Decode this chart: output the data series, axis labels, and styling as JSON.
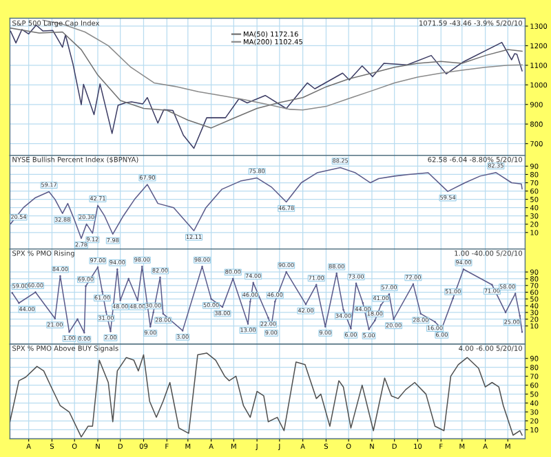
{
  "chart_data": [
    {
      "type": "line",
      "title": "S&P 500 Large Cap Index",
      "annotations": [
        "1071.59 -43.46 -3.9% 5/20/10"
      ],
      "legend": "top",
      "grid": true,
      "tick_labels": "y",
      "xlim": [
        "2008-07-07",
        "2010-05-24"
      ],
      "ylim": [
        640,
        1340
      ],
      "yticks": [
        700,
        800,
        900,
        1000,
        1100,
        1200,
        1300
      ],
      "xticks": [
        {
          "value": "2008-08-01",
          "label": null
        },
        {
          "value": "2008-09-01",
          "label": null
        },
        {
          "value": "2008-10-01",
          "label": null
        },
        {
          "value": "2008-11-01",
          "label": null
        },
        {
          "value": "2008-12-01",
          "label": null
        },
        {
          "value": "2009-01-01",
          "label": null
        },
        {
          "value": "2009-02-01",
          "label": null
        },
        {
          "value": "2009-03-01",
          "label": null
        },
        {
          "value": "2009-04-01",
          "label": null
        },
        {
          "value": "2009-05-01",
          "label": null
        },
        {
          "value": "2009-06-01",
          "label": null
        },
        {
          "value": "2009-07-01",
          "label": null
        },
        {
          "value": "2009-08-01",
          "label": null
        },
        {
          "value": "2009-09-01",
          "label": null
        },
        {
          "value": "2009-10-01",
          "label": null
        },
        {
          "value": "2009-11-01",
          "label": null
        },
        {
          "value": "2009-12-01",
          "label": null
        },
        {
          "value": "2010-01-01",
          "label": null
        },
        {
          "value": "2010-02-01",
          "label": null
        },
        {
          "value": "2010-03-01",
          "label": null
        },
        {
          "value": "2010-04-01",
          "label": null
        },
        {
          "value": "2010-05-01",
          "label": null
        }
      ],
      "series": [
        {
          "color": "#3c3c64",
          "x": [
            "2008-07-08",
            "2008-07-15",
            "2008-07-23",
            "2008-08-01",
            "2008-08-11",
            "2008-08-20",
            "2008-09-02",
            "2008-09-15",
            "2008-09-19",
            "2008-09-29",
            "2008-10-10",
            "2008-10-13",
            "2008-10-27",
            "2008-11-04",
            "2008-11-20",
            "2008-11-28",
            "2008-12-08",
            "2008-12-16",
            "2008-12-31",
            "2009-01-06",
            "2009-01-20",
            "2009-01-28",
            "2009-02-09",
            "2009-02-23",
            "2009-03-09",
            "2009-03-26",
            "2009-04-20",
            "2009-05-08",
            "2009-05-19",
            "2009-06-12",
            "2009-07-10",
            "2009-08-07",
            "2009-08-17",
            "2009-09-23",
            "2009-10-02",
            "2009-10-19",
            "2009-11-02",
            "2009-11-17",
            "2009-12-18",
            "2010-01-19",
            "2010-02-08",
            "2010-03-03",
            "2010-04-23",
            "2010-05-06",
            "2010-05-10",
            "2010-05-13",
            "2010-05-20"
          ],
          "values": [
            1273,
            1214,
            1283,
            1260,
            1305,
            1275,
            1278,
            1192,
            1255,
            1106,
            899,
            1003,
            848,
            1005,
            752,
            896,
            909,
            913,
            903,
            935,
            805,
            874,
            869,
            743,
            676,
            832,
            832,
            929,
            908,
            946,
            879,
            1010,
            980,
            1060,
            1025,
            1097,
            1042,
            1110,
            1102,
            1150,
            1056,
            1118,
            1217,
            1128,
            1159,
            1157,
            1071.59
          ]
        },
        {
          "name": "MA(50) 1172.16",
          "color": "#707070",
          "x": [
            "2008-07-08",
            "2008-08-15",
            "2008-09-15",
            "2008-10-10",
            "2008-11-01",
            "2008-12-01",
            "2009-01-01",
            "2009-02-01",
            "2009-03-01",
            "2009-04-01",
            "2009-05-01",
            "2009-06-01",
            "2009-07-01",
            "2009-08-01",
            "2009-09-01",
            "2009-10-01",
            "2009-11-01",
            "2009-12-01",
            "2010-01-01",
            "2010-02-01",
            "2010-03-01",
            "2010-04-01",
            "2010-05-01",
            "2010-05-20"
          ],
          "values": [
            1290,
            1265,
            1270,
            1180,
            1050,
            920,
            880,
            870,
            820,
            780,
            830,
            880,
            910,
            935,
            990,
            1030,
            1060,
            1090,
            1110,
            1120,
            1110,
            1150,
            1180,
            1172
          ]
        },
        {
          "name": "MA(200) 1102.45",
          "color": "#8a8a8a",
          "x": [
            "2008-08-20",
            "2008-09-15",
            "2008-10-15",
            "2008-11-15",
            "2008-12-15",
            "2009-01-15",
            "2009-02-15",
            "2009-03-15",
            "2009-04-15",
            "2009-05-15",
            "2009-06-15",
            "2009-07-15",
            "2009-08-01",
            "2009-09-01",
            "2009-10-01",
            "2009-11-01",
            "2009-12-01",
            "2010-01-01",
            "2010-02-01",
            "2010-03-01",
            "2010-04-01",
            "2010-05-01",
            "2010-05-20"
          ],
          "values": [
            1330,
            1310,
            1270,
            1200,
            1090,
            1010,
            990,
            965,
            945,
            925,
            900,
            875,
            872,
            890,
            930,
            970,
            1010,
            1040,
            1060,
            1075,
            1090,
            1100,
            1102
          ]
        }
      ]
    },
    {
      "type": "line",
      "title": "NYSE Bullish Percent Index ($BPNYA)",
      "annotations": [
        "62.58 -6.04 -8.80% 5/20/10",
        {
          "text": "20.54",
          "x": "2008-07-08",
          "y": 20.54
        },
        {
          "text": "59.17",
          "x": "2008-08-28",
          "y": 59.17
        },
        {
          "text": "32.88",
          "x": "2008-09-15",
          "y": 32.88
        },
        {
          "text": "2.78",
          "x": "2008-10-10",
          "y": 2.78
        },
        {
          "text": "20.30",
          "x": "2008-10-17",
          "y": 20.3
        },
        {
          "text": "9.12",
          "x": "2008-10-25",
          "y": 9.12
        },
        {
          "text": "42.71",
          "x": "2008-11-01",
          "y": 42.71
        },
        {
          "text": "7.98",
          "x": "2008-11-21",
          "y": 7.98
        },
        {
          "text": "67.90",
          "x": "2009-01-06",
          "y": 67.9
        },
        {
          "text": "12.11",
          "x": "2009-03-09",
          "y": 12.11
        },
        {
          "text": "75.80",
          "x": "2009-06-01",
          "y": 75.8
        },
        {
          "text": "46.78",
          "x": "2009-07-10",
          "y": 46.78
        },
        {
          "text": "88.25",
          "x": "2009-09-20",
          "y": 88.25
        },
        {
          "text": "59.54",
          "x": "2010-02-10",
          "y": 59.54
        },
        {
          "text": "82.35",
          "x": "2010-04-15",
          "y": 82.35
        }
      ],
      "grid": true,
      "tick_labels": "y",
      "xlim": [
        "2008-07-07",
        "2010-05-24"
      ],
      "ylim": [
        -10,
        103
      ],
      "yticks": [
        10,
        20,
        30,
        40,
        50,
        60,
        70,
        80,
        90
      ],
      "xticks": [
        {
          "value": "2008-08-01",
          "label": null
        },
        {
          "value": "2008-09-01",
          "label": null
        },
        {
          "value": "2008-10-01",
          "label": null
        },
        {
          "value": "2008-11-01",
          "label": null
        },
        {
          "value": "2008-12-01",
          "label": null
        },
        {
          "value": "2009-01-01",
          "label": null
        },
        {
          "value": "2009-02-01",
          "label": null
        },
        {
          "value": "2009-03-01",
          "label": null
        },
        {
          "value": "2009-04-01",
          "label": null
        },
        {
          "value": "2009-05-01",
          "label": null
        },
        {
          "value": "2009-06-01",
          "label": null
        },
        {
          "value": "2009-07-01",
          "label": null
        },
        {
          "value": "2009-08-01",
          "label": null
        },
        {
          "value": "2009-09-01",
          "label": null
        },
        {
          "value": "2009-10-01",
          "label": null
        },
        {
          "value": "2009-11-01",
          "label": null
        },
        {
          "value": "2009-12-01",
          "label": null
        },
        {
          "value": "2010-01-01",
          "label": null
        },
        {
          "value": "2010-02-01",
          "label": null
        },
        {
          "value": "2010-03-01",
          "label": null
        },
        {
          "value": "2010-04-01",
          "label": null
        },
        {
          "value": "2010-05-01",
          "label": null
        }
      ],
      "series": [
        {
          "color": "#5a5a8a",
          "x": [
            "2008-07-08",
            "2008-07-25",
            "2008-08-10",
            "2008-08-28",
            "2008-09-05",
            "2008-09-15",
            "2008-09-22",
            "2008-10-01",
            "2008-10-10",
            "2008-10-17",
            "2008-10-25",
            "2008-11-01",
            "2008-11-10",
            "2008-11-21",
            "2008-12-05",
            "2008-12-20",
            "2009-01-06",
            "2009-01-20",
            "2009-02-10",
            "2009-03-09",
            "2009-03-25",
            "2009-04-15",
            "2009-05-10",
            "2009-06-01",
            "2009-06-20",
            "2009-07-10",
            "2009-07-30",
            "2009-08-20",
            "2009-09-20",
            "2009-10-10",
            "2009-10-30",
            "2009-11-10",
            "2009-12-01",
            "2009-12-20",
            "2010-01-15",
            "2010-02-10",
            "2010-03-05",
            "2010-03-25",
            "2010-04-15",
            "2010-05-06",
            "2010-05-19",
            "2010-05-20"
          ],
          "values": [
            20.54,
            40,
            52,
            59.17,
            50,
            32.88,
            45,
            25,
            2.78,
            20.3,
            9.12,
            42.71,
            30,
            7.98,
            30,
            50,
            67.9,
            45,
            40,
            12.11,
            40,
            62,
            72,
            75.8,
            65,
            46.78,
            70,
            82,
            88.25,
            82,
            70,
            75,
            78,
            80,
            82,
            59.54,
            70,
            78,
            82.35,
            70,
            68.62,
            62.58
          ]
        }
      ]
    },
    {
      "type": "line",
      "title": "SPX % PMO Rising",
      "annotations": [
        "1.00 -40.00 5/20/10",
        {
          "text": "59.00",
          "x": "2008-07-10",
          "y": 59
        },
        {
          "text": "44.00",
          "x": "2008-07-19",
          "y": 44
        },
        {
          "text": "60.00",
          "x": "2008-08-10",
          "y": 60
        },
        {
          "text": "21.00",
          "x": "2008-09-05",
          "y": 21
        },
        {
          "text": "84.00",
          "x": "2008-09-12",
          "y": 84
        },
        {
          "text": "1.00",
          "x": "2008-09-24",
          "y": 1
        },
        {
          "text": "0.00",
          "x": "2008-10-14",
          "y": 0
        },
        {
          "text": "69.00",
          "x": "2008-10-16",
          "y": 69
        },
        {
          "text": "97.00",
          "x": "2008-11-01",
          "y": 97
        },
        {
          "text": "61.00",
          "x": "2008-11-07",
          "y": 61
        },
        {
          "text": "31.00",
          "x": "2008-11-12",
          "y": 31
        },
        {
          "text": "2.00",
          "x": "2008-11-18",
          "y": 2
        },
        {
          "text": "94.00",
          "x": "2008-11-27",
          "y": 94
        },
        {
          "text": "48.00",
          "x": "2008-12-01",
          "y": 48
        },
        {
          "text": "48.00",
          "x": "2008-12-24",
          "y": 48
        },
        {
          "text": "98.00",
          "x": "2008-12-30",
          "y": 98
        },
        {
          "text": "9.00",
          "x": "2009-01-10",
          "y": 9
        },
        {
          "text": "30.00",
          "x": "2009-01-14",
          "y": 30
        },
        {
          "text": "82.00",
          "x": "2009-01-23",
          "y": 82
        },
        {
          "text": "28.00",
          "x": "2009-01-27",
          "y": 28
        },
        {
          "text": "3.00",
          "x": "2009-02-22",
          "y": 3
        },
        {
          "text": "98.00",
          "x": "2009-03-20",
          "y": 98
        },
        {
          "text": "50.00",
          "x": "2009-04-01",
          "y": 50
        },
        {
          "text": "38.00",
          "x": "2009-04-16",
          "y": 38
        },
        {
          "text": "80.00",
          "x": "2009-04-30",
          "y": 80
        },
        {
          "text": "13.00",
          "x": "2009-05-20",
          "y": 13
        },
        {
          "text": "46.00",
          "x": "2009-05-23",
          "y": 46
        },
        {
          "text": "74.00",
          "x": "2009-05-27",
          "y": 74
        },
        {
          "text": "22.00",
          "x": "2009-06-16",
          "y": 22
        },
        {
          "text": "9.00",
          "x": "2009-06-20",
          "y": 9
        },
        {
          "text": "46.00",
          "x": "2009-06-25",
          "y": 46
        },
        {
          "text": "90.00",
          "x": "2009-07-10",
          "y": 90
        },
        {
          "text": "42.00",
          "x": "2009-08-05",
          "y": 42
        },
        {
          "text": "71.00",
          "x": "2009-08-19",
          "y": 71
        },
        {
          "text": "9.00",
          "x": "2009-08-31",
          "y": 9
        },
        {
          "text": "88.00",
          "x": "2009-09-15",
          "y": 88
        },
        {
          "text": "34.00",
          "x": "2009-09-24",
          "y": 34
        },
        {
          "text": "6.00",
          "x": "2009-10-04",
          "y": 6
        },
        {
          "text": "73.00",
          "x": "2009-10-11",
          "y": 73
        },
        {
          "text": "44.00",
          "x": "2009-10-20",
          "y": 44
        },
        {
          "text": "5.00",
          "x": "2009-10-28",
          "y": 5
        },
        {
          "text": "18.00",
          "x": "2009-11-05",
          "y": 18
        },
        {
          "text": "41.00",
          "x": "2009-11-13",
          "y": 41
        },
        {
          "text": "57.00",
          "x": "2009-11-24",
          "y": 57
        },
        {
          "text": "20.00",
          "x": "2009-11-30",
          "y": 20
        },
        {
          "text": "72.00",
          "x": "2009-12-26",
          "y": 72
        },
        {
          "text": "28.00",
          "x": "2010-01-05",
          "y": 28
        },
        {
          "text": "16.00",
          "x": "2010-01-24",
          "y": 16
        },
        {
          "text": "6.00",
          "x": "2010-02-02",
          "y": 6
        },
        {
          "text": "51.00",
          "x": "2010-02-17",
          "y": 51
        },
        {
          "text": "94.00",
          "x": "2010-03-03",
          "y": 94
        },
        {
          "text": "71.00",
          "x": "2010-04-10",
          "y": 71
        },
        {
          "text": "58.00",
          "x": "2010-05-11",
          "y": 58
        },
        {
          "text": "25.00",
          "x": "2010-05-17",
          "y": 25
        }
      ],
      "grid": true,
      "tick_labels": "y",
      "xlim": [
        "2008-07-07",
        "2010-05-24"
      ],
      "ylim": [
        -17,
        124
      ],
      "yticks": [
        10,
        20,
        30,
        40,
        50,
        60,
        70,
        80,
        90
      ],
      "xticks": [
        {
          "value": "2008-08-01",
          "label": null
        },
        {
          "value": "2008-09-01",
          "label": null
        },
        {
          "value": "2008-10-01",
          "label": null
        },
        {
          "value": "2008-11-01",
          "label": null
        },
        {
          "value": "2008-12-01",
          "label": null
        },
        {
          "value": "2009-01-01",
          "label": null
        },
        {
          "value": "2009-02-01",
          "label": null
        },
        {
          "value": "2009-03-01",
          "label": null
        },
        {
          "value": "2009-04-01",
          "label": null
        },
        {
          "value": "2009-05-01",
          "label": null
        },
        {
          "value": "2009-06-01",
          "label": null
        },
        {
          "value": "2009-07-01",
          "label": null
        },
        {
          "value": "2009-08-01",
          "label": null
        },
        {
          "value": "2009-09-01",
          "label": null
        },
        {
          "value": "2009-10-01",
          "label": null
        },
        {
          "value": "2009-11-01",
          "label": null
        },
        {
          "value": "2009-12-01",
          "label": null
        },
        {
          "value": "2010-01-01",
          "label": null
        },
        {
          "value": "2010-02-01",
          "label": null
        },
        {
          "value": "2010-03-01",
          "label": null
        },
        {
          "value": "2010-04-01",
          "label": null
        },
        {
          "value": "2010-05-01",
          "label": null
        }
      ],
      "series": [
        {
          "color": "#5a5a8a",
          "marker": "circle",
          "x": [
            "2008-07-10",
            "2008-07-19",
            "2008-08-10",
            "2008-09-05",
            "2008-09-12",
            "2008-09-24",
            "2008-10-05",
            "2008-10-14",
            "2008-10-16",
            "2008-11-01",
            "2008-11-07",
            "2008-11-12",
            "2008-11-18",
            "2008-11-27",
            "2008-12-01",
            "2008-12-12",
            "2008-12-24",
            "2008-12-30",
            "2009-01-10",
            "2009-01-14",
            "2009-01-23",
            "2009-01-27",
            "2009-02-22",
            "2009-03-20",
            "2009-04-01",
            "2009-04-16",
            "2009-04-30",
            "2009-05-20",
            "2009-05-23",
            "2009-05-27",
            "2009-06-16",
            "2009-06-20",
            "2009-06-25",
            "2009-07-10",
            "2009-08-05",
            "2009-08-19",
            "2009-08-31",
            "2009-09-15",
            "2009-09-24",
            "2009-10-04",
            "2009-10-11",
            "2009-10-20",
            "2009-10-28",
            "2009-11-05",
            "2009-11-13",
            "2009-11-24",
            "2009-11-30",
            "2009-12-26",
            "2010-01-05",
            "2010-01-24",
            "2010-02-02",
            "2010-02-17",
            "2010-03-03",
            "2010-04-10",
            "2010-04-28",
            "2010-05-11",
            "2010-05-17",
            "2010-05-20"
          ],
          "values": [
            59,
            44,
            60,
            21,
            84,
            1,
            20,
            0,
            69,
            97,
            61,
            31,
            2,
            94,
            48,
            80,
            48,
            98,
            9,
            30,
            82,
            28,
            3,
            98,
            50,
            38,
            80,
            13,
            46,
            74,
            22,
            9,
            46,
            90,
            42,
            71,
            9,
            88,
            34,
            6,
            73,
            44,
            5,
            18,
            41,
            57,
            20,
            72,
            28,
            16,
            6,
            51,
            94,
            71,
            30,
            58,
            25,
            1
          ]
        }
      ]
    },
    {
      "type": "line",
      "title": "SPX % PMO Above BUY Signals",
      "annotations": [
        "4.00 -6.00 5/20/10"
      ],
      "grid": true,
      "xlim": [
        "2008-07-07",
        "2010-05-24"
      ],
      "ylim": [
        0,
        106
      ],
      "yticks": [
        10,
        20,
        30,
        40,
        50,
        60,
        70,
        80,
        90
      ],
      "xticks": [
        {
          "value": "2008-08-01",
          "label": "A"
        },
        {
          "value": "2008-09-01",
          "label": "S"
        },
        {
          "value": "2008-10-01",
          "label": "O"
        },
        {
          "value": "2008-11-01",
          "label": "N"
        },
        {
          "value": "2008-12-01",
          "label": "D"
        },
        {
          "value": "2009-01-01",
          "label": "09"
        },
        {
          "value": "2009-02-01",
          "label": "F"
        },
        {
          "value": "2009-03-01",
          "label": "M"
        },
        {
          "value": "2009-04-01",
          "label": "A"
        },
        {
          "value": "2009-05-01",
          "label": "M"
        },
        {
          "value": "2009-06-01",
          "label": "J"
        },
        {
          "value": "2009-07-01",
          "label": "J"
        },
        {
          "value": "2009-08-01",
          "label": "A"
        },
        {
          "value": "2009-09-01",
          "label": "S"
        },
        {
          "value": "2009-10-01",
          "label": "O"
        },
        {
          "value": "2009-11-01",
          "label": "N"
        },
        {
          "value": "2009-12-01",
          "label": "D"
        },
        {
          "value": "2010-01-01",
          "label": "10"
        },
        {
          "value": "2010-02-01",
          "label": "F"
        },
        {
          "value": "2010-03-01",
          "label": "M"
        },
        {
          "value": "2010-04-01",
          "label": "A"
        },
        {
          "value": "2010-05-01",
          "label": "M"
        }
      ],
      "series": [
        {
          "color": "#505050",
          "x": [
            "2008-07-07",
            "2008-07-19",
            "2008-07-28",
            "2008-08-12",
            "2008-08-21",
            "2008-08-31",
            "2008-09-12",
            "2008-09-24",
            "2008-10-10",
            "2008-10-19",
            "2008-10-25",
            "2008-10-31",
            "2008-11-03",
            "2008-11-15",
            "2008-11-21",
            "2008-11-27",
            "2008-12-09",
            "2008-12-19",
            "2008-12-25",
            "2009-01-01",
            "2009-01-09",
            "2009-01-18",
            "2009-01-27",
            "2009-02-05",
            "2009-02-17",
            "2009-03-02",
            "2009-03-14",
            "2009-03-26",
            "2009-04-07",
            "2009-04-19",
            "2009-04-25",
            "2009-05-04",
            "2009-05-14",
            "2009-05-23",
            "2009-06-01",
            "2009-06-10",
            "2009-06-16",
            "2009-06-28",
            "2009-07-07",
            "2009-07-23",
            "2009-08-04",
            "2009-08-19",
            "2009-08-25",
            "2009-09-06",
            "2009-09-18",
            "2009-09-24",
            "2009-10-04",
            "2009-10-19",
            "2009-11-03",
            "2009-11-18",
            "2009-11-27",
            "2009-12-06",
            "2009-12-16",
            "2009-12-28",
            "2010-01-12",
            "2010-01-24",
            "2010-02-05",
            "2010-02-14",
            "2010-02-24",
            "2010-03-08",
            "2010-03-23",
            "2010-04-01",
            "2010-04-10",
            "2010-04-19",
            "2010-04-25",
            "2010-05-08",
            "2010-05-17",
            "2010-05-20"
          ],
          "values": [
            19,
            65,
            69,
            81,
            76,
            58,
            37,
            30,
            2,
            14,
            14,
            63,
            88,
            63,
            19,
            76,
            91,
            88,
            76,
            94,
            42,
            24,
            42,
            63,
            12,
            6,
            94,
            96,
            88,
            70,
            65,
            70,
            37,
            24,
            53,
            48,
            19,
            24,
            9,
            86,
            83,
            45,
            50,
            14,
            65,
            58,
            12,
            60,
            9,
            68,
            48,
            45,
            55,
            63,
            50,
            14,
            9,
            70,
            83,
            91,
            79,
            58,
            63,
            58,
            37,
            4,
            9,
            4
          ]
        }
      ]
    }
  ]
}
